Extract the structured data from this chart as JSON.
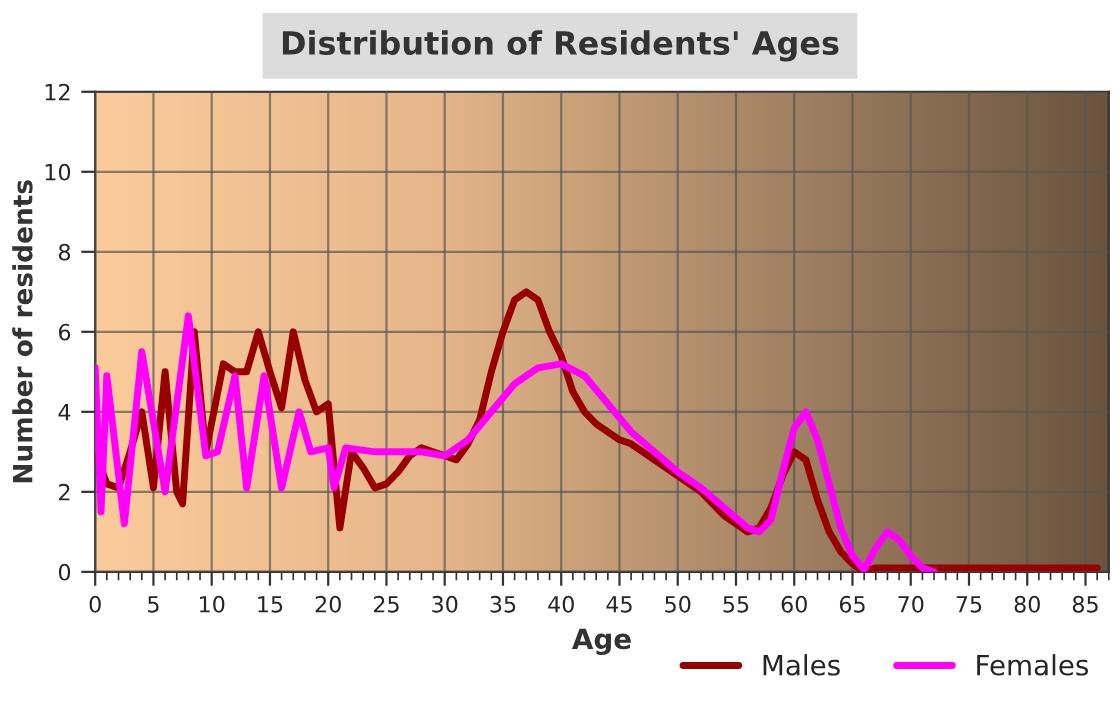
{
  "chart_data": {
    "type": "line",
    "title": "Distribution of Residents' Ages",
    "xlabel": "Age",
    "ylabel": "Number of residents",
    "xlim": [
      0,
      87
    ],
    "ylim": [
      0,
      12
    ],
    "xticks": [
      0,
      5,
      10,
      15,
      20,
      25,
      30,
      35,
      40,
      45,
      50,
      55,
      60,
      65,
      70,
      75,
      80,
      85
    ],
    "yticks": [
      0,
      2,
      4,
      6,
      8,
      10,
      12
    ],
    "grid": true,
    "legend": "bottom right",
    "line_style": "solid",
    "marker": "none",
    "series": [
      {
        "name": "Males",
        "color": "#990000",
        "x": [
          0,
          1,
          2,
          3,
          4,
          5,
          6,
          7,
          7.5,
          8.5,
          9.5,
          11,
          12,
          13,
          14,
          15,
          16,
          17,
          18,
          19,
          20,
          21,
          22,
          23,
          24,
          25,
          26,
          27,
          28,
          29,
          30,
          31,
          32,
          33,
          34,
          35,
          36,
          37,
          38,
          39,
          40,
          41,
          42,
          43,
          44,
          45,
          46,
          47,
          48,
          49,
          50,
          51,
          52,
          53,
          54,
          55,
          56,
          57,
          58,
          59,
          60,
          61,
          62,
          63,
          64,
          65,
          66,
          67,
          70,
          75,
          80,
          86
        ],
        "values": [
          3.0,
          2.2,
          2.1,
          3.0,
          4.0,
          2.1,
          5.0,
          2.0,
          1.7,
          6.0,
          3.0,
          5.2,
          5.0,
          5.0,
          6.0,
          5.0,
          4.1,
          6.0,
          4.8,
          4.0,
          4.2,
          1.1,
          3.0,
          2.6,
          2.1,
          2.2,
          2.5,
          2.9,
          3.1,
          3.0,
          2.9,
          2.8,
          3.2,
          3.8,
          5.0,
          6.0,
          6.8,
          7.0,
          6.8,
          6.0,
          5.4,
          4.5,
          4.0,
          3.7,
          3.5,
          3.3,
          3.2,
          3.0,
          2.8,
          2.6,
          2.4,
          2.2,
          2.0,
          1.7,
          1.4,
          1.2,
          1.0,
          1.1,
          1.6,
          2.4,
          3.0,
          2.8,
          1.8,
          1.0,
          0.5,
          0.2,
          0.0,
          0.1,
          0.1,
          0.1,
          0.1,
          0.1
        ]
      },
      {
        "name": "Females",
        "color": "#ff00ff",
        "x": [
          0,
          0.5,
          1,
          2.5,
          4,
          6,
          8,
          9.5,
          10.5,
          12,
          13,
          14.5,
          16,
          17.5,
          18.5,
          20,
          20.5,
          21.5,
          24,
          28,
          30,
          32,
          34,
          36,
          38,
          40,
          42,
          44,
          46,
          48,
          50,
          52,
          54,
          56,
          57,
          58,
          59,
          60,
          61,
          62,
          63,
          64,
          65,
          66,
          67,
          68,
          69,
          70,
          71,
          72
        ],
        "values": [
          5.1,
          1.5,
          4.9,
          1.2,
          5.5,
          2.0,
          6.4,
          2.9,
          3.0,
          4.9,
          2.1,
          4.9,
          2.1,
          4.0,
          3.0,
          3.1,
          2.1,
          3.1,
          3.0,
          3.0,
          2.9,
          3.3,
          4.0,
          4.7,
          5.1,
          5.2,
          4.9,
          4.2,
          3.5,
          3.0,
          2.5,
          2.1,
          1.6,
          1.1,
          1.0,
          1.3,
          2.5,
          3.6,
          4.0,
          3.3,
          2.2,
          1.1,
          0.4,
          0.05,
          0.6,
          1.0,
          0.8,
          0.4,
          0.1,
          0.0
        ]
      }
    ]
  }
}
